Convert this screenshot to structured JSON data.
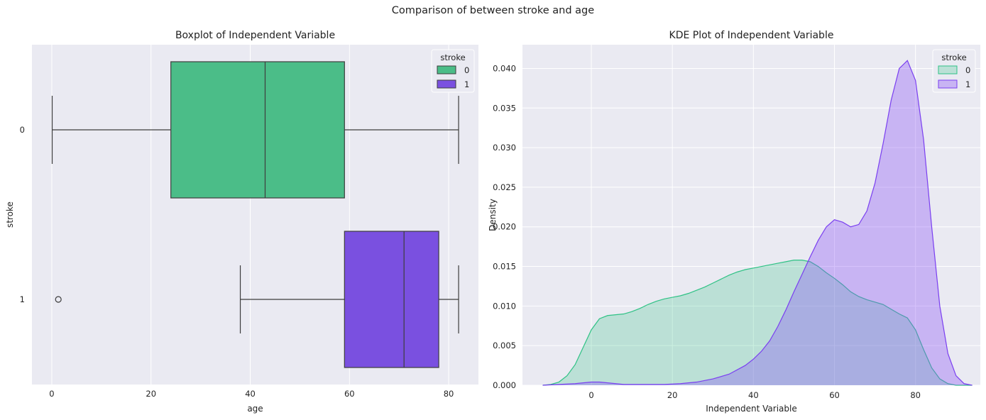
{
  "figure": {
    "title": "Comparison of between stroke and age"
  },
  "colors": {
    "panel_bg": "#eaeaf2",
    "grid": "#ffffff",
    "series0": "#2fc285",
    "series0_fill": "#4bbd88",
    "series1": "#7a3ff0",
    "series1_fill": "#7a50e0",
    "whisker": "#3d3d3d"
  },
  "chart_data": [
    {
      "type": "boxplot",
      "title": "Boxplot of Independent Variable",
      "xlabel": "age",
      "ylabel": "stroke",
      "xlim": [
        -4,
        86
      ],
      "xticks": [
        0,
        20,
        40,
        60,
        80
      ],
      "categories": [
        "0",
        "1"
      ],
      "legend": {
        "title": "stroke",
        "entries": [
          "0",
          "1"
        ],
        "placement": "top-right"
      },
      "boxes": [
        {
          "category": "0",
          "whisker_low": 0.08,
          "q1": 24,
          "median": 43,
          "q3": 59,
          "whisker_high": 82,
          "outliers": []
        },
        {
          "category": "1",
          "whisker_low": 38,
          "q1": 59,
          "median": 71,
          "q3": 78,
          "whisker_high": 82,
          "outliers": [
            1.32
          ]
        }
      ],
      "grid": true
    },
    {
      "type": "area",
      "title": "KDE Plot of Independent Variable",
      "xlabel": "Independent Variable",
      "ylabel": "Density",
      "xlim": [
        -17,
        96
      ],
      "ylim": [
        0,
        0.043
      ],
      "xticks": [
        0,
        20,
        40,
        60,
        80
      ],
      "yticks": [
        0.0,
        0.005,
        0.01,
        0.015,
        0.02,
        0.025,
        0.03,
        0.035,
        0.04
      ],
      "legend": {
        "title": "stroke",
        "entries": [
          "0",
          "1"
        ],
        "placement": "top-right"
      },
      "grid": true,
      "series": [
        {
          "name": "0",
          "x": [
            -12,
            -10,
            -8,
            -6,
            -4,
            -2,
            0,
            2,
            4,
            6,
            8,
            10,
            12,
            14,
            16,
            18,
            20,
            22,
            24,
            26,
            28,
            30,
            32,
            34,
            36,
            38,
            40,
            42,
            44,
            46,
            48,
            50,
            52,
            54,
            56,
            58,
            60,
            62,
            64,
            66,
            68,
            70,
            72,
            74,
            76,
            78,
            80,
            82,
            84,
            86,
            88,
            90,
            92,
            94
          ],
          "y": [
            0.0,
            0.0001,
            0.0004,
            0.0012,
            0.0026,
            0.0048,
            0.007,
            0.0084,
            0.0088,
            0.0089,
            0.009,
            0.0093,
            0.0097,
            0.0102,
            0.0106,
            0.0109,
            0.0111,
            0.0113,
            0.0116,
            0.012,
            0.0124,
            0.0129,
            0.0134,
            0.0139,
            0.0143,
            0.0146,
            0.0148,
            0.015,
            0.0152,
            0.0154,
            0.0156,
            0.0158,
            0.0158,
            0.0156,
            0.015,
            0.0142,
            0.0135,
            0.0127,
            0.0118,
            0.0112,
            0.0108,
            0.0105,
            0.0102,
            0.0096,
            0.009,
            0.0085,
            0.007,
            0.0045,
            0.0022,
            0.0008,
            0.0002,
            0.0,
            0.0,
            0.0
          ]
        },
        {
          "name": "1",
          "x": [
            -12,
            -8,
            -4,
            -2,
            0,
            2,
            4,
            6,
            8,
            10,
            14,
            18,
            22,
            26,
            30,
            34,
            38,
            40,
            42,
            44,
            46,
            48,
            50,
            52,
            54,
            56,
            58,
            60,
            62,
            64,
            66,
            68,
            70,
            72,
            74,
            76,
            78,
            80,
            82,
            84,
            86,
            88,
            90,
            92,
            94
          ],
          "y": [
            0.0,
            0.0001,
            0.0002,
            0.0003,
            0.0004,
            0.0004,
            0.0003,
            0.0002,
            0.0001,
            0.0001,
            0.0001,
            0.0001,
            0.0002,
            0.0004,
            0.0008,
            0.0014,
            0.0025,
            0.0033,
            0.0043,
            0.0056,
            0.0074,
            0.0095,
            0.0118,
            0.014,
            0.0162,
            0.0183,
            0.02,
            0.0209,
            0.0206,
            0.02,
            0.0203,
            0.022,
            0.0255,
            0.0305,
            0.036,
            0.04,
            0.041,
            0.0385,
            0.031,
            0.02,
            0.01,
            0.004,
            0.0012,
            0.0002,
            0.0
          ]
        }
      ]
    }
  ]
}
